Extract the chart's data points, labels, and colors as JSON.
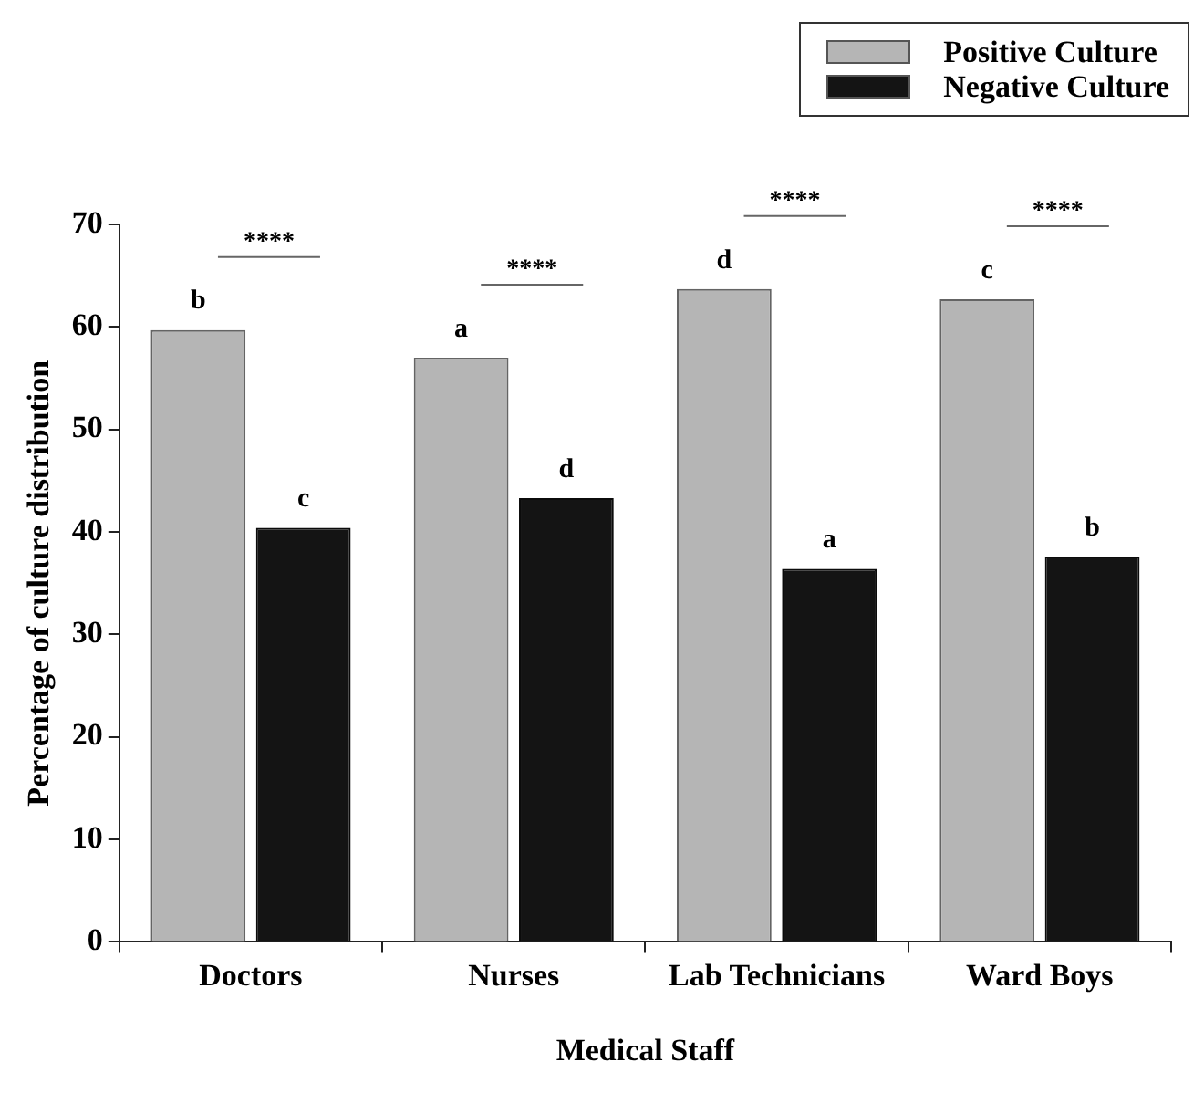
{
  "chart_data": {
    "type": "bar",
    "xlabel": "Medical Staff",
    "ylabel": "Percentage of culture distribution",
    "categories": [
      "Doctors",
      "Nurses",
      "Lab Technicians",
      "Ward Boys"
    ],
    "series": [
      {
        "name": "Positive Culture",
        "color": "#b5b5b5",
        "values": [
          59.7,
          57.0,
          63.7,
          62.7
        ],
        "value_labels": [
          "b",
          "a",
          "d",
          "c"
        ]
      },
      {
        "name": "Negative Culture",
        "color": "#141414",
        "values": [
          40.4,
          43.3,
          36.4,
          37.6
        ],
        "value_labels": [
          "c",
          "d",
          "a",
          "b"
        ]
      }
    ],
    "ylim": [
      0,
      70
    ],
    "yticks": [
      0,
      10,
      20,
      30,
      40,
      50,
      60,
      70
    ],
    "grid": false,
    "legend": "top right",
    "annotations": [
      "****",
      "****",
      "****",
      "****"
    ]
  }
}
